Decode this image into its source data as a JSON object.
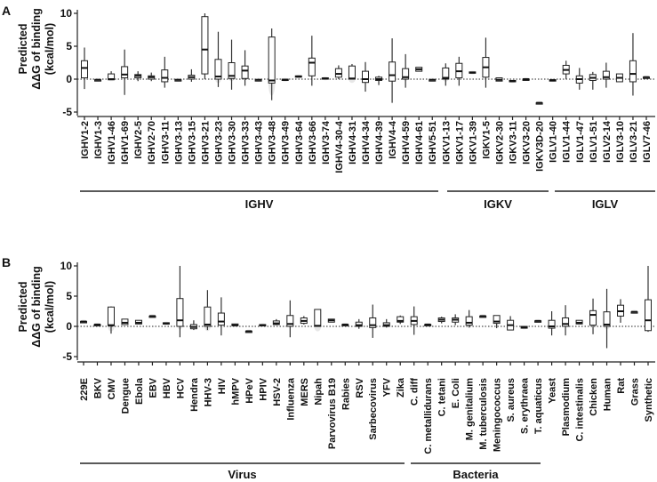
{
  "chart_data": [
    {
      "type": "box",
      "panel": "A",
      "ylabel": [
        "Predicted",
        "ΔΔG of binding",
        "(kcal/mol)"
      ],
      "ylim": [
        -5,
        10
      ],
      "yticks": [
        10,
        5,
        0,
        -5
      ],
      "reference_line": 0,
      "categories": [
        "IGHV1-2",
        "IGHV1-3",
        "IGHV1-46",
        "IGHV1-69",
        "IGHV2-5",
        "IGHV2-70",
        "IGHV3-11",
        "IGHV3-13",
        "IGHV3-15",
        "IGHV3-21",
        "IGHV3-23",
        "IGHV3-30",
        "IGHV3-33",
        "IGHV3-43",
        "IGHV3-48",
        "IGHV3-49",
        "IGHV3-64",
        "IGHV3-66",
        "IGHV3-74",
        "IGHV4-30-4",
        "IGHV4-31",
        "IGHV4-34",
        "IGHV4-39",
        "IGHV4-4",
        "IGHV4-59",
        "IGHV4-61",
        "IGHV5-51",
        "IGKV1-13",
        "IGKV1-17",
        "IGKV1-39",
        "IGKV1-5",
        "IGKV2-30",
        "IGKV3-11",
        "IGKV3-20",
        "IGKV3D-20",
        "IGLV1-40",
        "IGLV1-44",
        "IGLV1-47",
        "IGLV1-51",
        "IGLV2-14",
        "IGLV3-10",
        "IGLV3-21",
        "IGLV7-46"
      ],
      "boxes": [
        [
          -1.5,
          0.2,
          1.7,
          2.8,
          4.8
        ],
        [
          -0.1,
          -0.1,
          -0.1,
          -0.1,
          -0.1
        ],
        [
          -0.1,
          -0.1,
          0,
          0.8,
          1.2
        ],
        [
          -2.4,
          0.2,
          0.7,
          1.9,
          4.5
        ],
        [
          -0.3,
          0.2,
          0.5,
          0.7,
          1.2
        ],
        [
          -0.3,
          0,
          0.3,
          0.5,
          1.0
        ],
        [
          -1.3,
          -0.4,
          0.2,
          1.4,
          3.4
        ],
        [
          -0.1,
          -0.1,
          -0.1,
          -0.1,
          -0.1
        ],
        [
          -0.4,
          0,
          0.3,
          0.6,
          1.5
        ],
        [
          0,
          0.8,
          4.5,
          9.5,
          10
        ],
        [
          -1.2,
          0,
          0.4,
          3.0,
          7.2
        ],
        [
          -1.6,
          0.1,
          0.5,
          2.5,
          6.0
        ],
        [
          -1.0,
          0.1,
          1.3,
          2.0,
          4.4
        ],
        [
          -0.1,
          -0.1,
          -0.1,
          -0.1,
          -0.1
        ],
        [
          -3.2,
          -0.6,
          -0.2,
          6.4,
          7.7
        ],
        [
          -0.2,
          -0.2,
          -0.1,
          0,
          0
        ],
        [
          0.3,
          0.3,
          0.4,
          0.5,
          0.5
        ],
        [
          -1.0,
          0.5,
          2.5,
          3.2,
          6.6
        ],
        [
          0,
          0,
          0.1,
          0.2,
          0.2
        ],
        [
          0,
          0.3,
          0.8,
          1.6,
          2.1
        ],
        [
          0,
          0,
          0.1,
          2.0,
          2.3
        ],
        [
          -1.9,
          -0.5,
          0,
          1.2,
          2.6
        ],
        [
          -0.9,
          -0.2,
          0,
          0.3,
          0.5
        ],
        [
          -3.6,
          -0.3,
          0.6,
          2.6,
          6.2
        ],
        [
          -1.3,
          0,
          0.3,
          1.6,
          3.8
        ],
        [
          1.2,
          1.2,
          1.5,
          1.8,
          1.8
        ],
        [
          -0.1,
          -0.1,
          -0.1,
          -0.1,
          -0.1
        ],
        [
          -1.0,
          0,
          0.2,
          1.7,
          2.4
        ],
        [
          -1.0,
          0.2,
          1.2,
          2.4,
          3.4
        ],
        [
          0.9,
          0.9,
          1.0,
          1.1,
          1.1
        ],
        [
          -1.3,
          0.3,
          1.8,
          3.3,
          6.3
        ],
        [
          -0.3,
          -0.3,
          -0.1,
          0.2,
          0.2
        ],
        [
          -0.4,
          -0.4,
          -0.3,
          -0.2,
          -0.2
        ],
        [
          -0.1,
          -0.1,
          0,
          0,
          0
        ],
        [
          -3.6,
          -3.6,
          -3.6,
          -3.6,
          -3.6
        ],
        [
          -0.2,
          -0.2,
          -0.15,
          -0.1,
          -0.1
        ],
        [
          0,
          0.8,
          1.4,
          2.1,
          2.8
        ],
        [
          -1.6,
          -0.6,
          0,
          0.5,
          1.7
        ],
        [
          -1.6,
          -0.2,
          0.2,
          0.7,
          1.1
        ],
        [
          -1.3,
          0,
          0.3,
          1.2,
          2.5
        ],
        [
          -0.4,
          -0.4,
          0.2,
          0.8,
          0.8
        ],
        [
          -2.5,
          -0.4,
          0.8,
          2.8,
          7.0
        ],
        [
          0.3,
          0.3,
          0.3,
          0.3,
          0.3
        ]
      ],
      "box_fields": [
        "whisker_low",
        "q1",
        "median",
        "q3",
        "whisker_high"
      ],
      "groups": [
        {
          "label": "IGHV",
          "from": 0,
          "to": 26
        },
        {
          "label": "IGKV",
          "from": 27,
          "to": 34
        },
        {
          "label": "IGLV",
          "from": 35,
          "to": 42
        }
      ]
    },
    {
      "type": "box",
      "panel": "B",
      "ylabel": [
        "Predicted",
        "ΔΔG of binding",
        "(kcal/mol)"
      ],
      "ylim": [
        -5,
        10
      ],
      "yticks": [
        10,
        5,
        0,
        -5
      ],
      "reference_line": 0,
      "categories": [
        "229E",
        "BKV",
        "CMV",
        "Dengue",
        "Ebola",
        "EBV",
        "HBV",
        "HCV",
        "Hendra",
        "HHV-3",
        "HIV",
        "hMPV",
        "HPeV",
        "HPIV",
        "HSV-2",
        "Influenza",
        "MERS",
        "Nipah",
        "Parvovirus B19",
        "Rabies",
        "RSV",
        "Sarbecovirus",
        "YFV",
        "Zika",
        "C. diff",
        "C. metallidurans",
        "C. tetani",
        "E. Coli",
        "M. genitalium",
        "M. tuberculosis",
        "Meningococcus",
        "S. aureus",
        "S. erythraea",
        "T. aquaticus",
        "Yeast",
        "Plasmodium",
        "C. intestinalis",
        "Chicken",
        "Human",
        "Rat",
        "Grass",
        "Synthetic"
      ],
      "boxes": [
        [
          0.8,
          0.8,
          0.8,
          0.8,
          0.8
        ],
        [
          0.3,
          0.3,
          0.3,
          0.3,
          0.3
        ],
        [
          -1.2,
          0.1,
          0.2,
          3.2,
          3.3
        ],
        [
          0.3,
          0.3,
          0.6,
          1.2,
          1.2
        ],
        [
          0.4,
          0.4,
          0.6,
          1.0,
          1.0
        ],
        [
          1.7,
          1.7,
          1.7,
          1.7,
          1.7
        ],
        [
          0.4,
          0.4,
          0.5,
          0.6,
          0.6
        ],
        [
          -1.8,
          0,
          1.0,
          4.6,
          10
        ],
        [
          -0.6,
          -0.4,
          -0.1,
          0.3,
          1.0
        ],
        [
          -0.6,
          0,
          0.3,
          3.2,
          6.0
        ],
        [
          -1.5,
          0.2,
          0.8,
          2.2,
          4.8
        ],
        [
          0.1,
          0.1,
          0.2,
          0.4,
          0.4
        ],
        [
          -0.8,
          -0.8,
          -0.8,
          -0.8,
          -0.8
        ],
        [
          0.1,
          0.1,
          0.2,
          0.3,
          0.3
        ],
        [
          0.2,
          0.3,
          0.5,
          0.9,
          1.2
        ],
        [
          -1.8,
          0,
          0.4,
          1.8,
          4.3
        ],
        [
          0.3,
          0.5,
          0.9,
          1.4,
          1.7
        ],
        [
          0,
          0,
          0.1,
          2.8,
          2.8
        ],
        [
          0.7,
          0.7,
          1.0,
          1.2,
          1.2
        ],
        [
          0.3,
          0.3,
          0.3,
          0.3,
          0.3
        ],
        [
          -0.4,
          0,
          0.2,
          0.7,
          1.2
        ],
        [
          -1.9,
          -0.2,
          0.2,
          1.4,
          3.6
        ],
        [
          -0.2,
          0,
          0.2,
          0.6,
          1.2
        ],
        [
          0.4,
          0.7,
          0.9,
          1.6,
          1.8
        ],
        [
          -1.4,
          0.3,
          0.9,
          1.6,
          3.3
        ],
        [
          0.3,
          0.3,
          0.3,
          0.3,
          0.3
        ],
        [
          0.5,
          0.8,
          1.1,
          1.4,
          1.6
        ],
        [
          0.2,
          0.7,
          1.1,
          1.4,
          2.0
        ],
        [
          -0.2,
          0.2,
          0.6,
          1.6,
          2.7
        ],
        [
          1.7,
          1.7,
          1.7,
          1.7,
          1.7
        ],
        [
          -0.3,
          0.5,
          0.8,
          1.8,
          1.8
        ],
        [
          -0.6,
          -0.6,
          0.2,
          1.0,
          1.7
        ],
        [
          -0.3,
          -0.3,
          -0.2,
          0,
          0
        ],
        [
          0.9,
          0.9,
          0.9,
          0.9,
          0.9
        ],
        [
          -1.5,
          -0.3,
          0,
          1.0,
          2.5
        ],
        [
          -1.5,
          0,
          0.4,
          1.4,
          3.5
        ],
        [
          0.4,
          0.4,
          0.6,
          1.0,
          1.0
        ],
        [
          -1.3,
          0.2,
          1.9,
          2.6,
          4.6
        ],
        [
          -3.6,
          0,
          0.3,
          2.4,
          6.2
        ],
        [
          0.6,
          1.7,
          2.5,
          3.5,
          4.5
        ],
        [
          2.4,
          2.4,
          2.4,
          2.4,
          2.4
        ],
        [
          -0.9,
          -0.7,
          1.0,
          4.4,
          10
        ]
      ],
      "box_fields": [
        "whisker_low",
        "q1",
        "median",
        "q3",
        "whisker_high"
      ],
      "groups": [
        {
          "label": "Virus",
          "from": 0,
          "to": 23
        },
        {
          "label": "Bacteria",
          "from": 24,
          "to": 33
        }
      ]
    }
  ]
}
